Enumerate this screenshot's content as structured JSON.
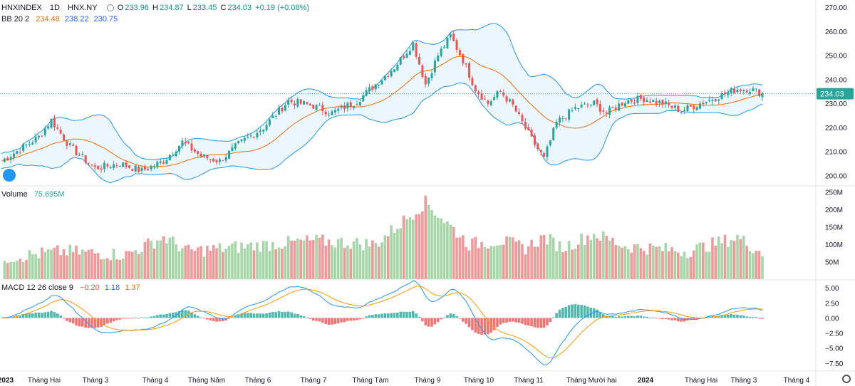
{
  "header": {
    "symbol": "HNXINDEX",
    "interval": "1D",
    "exchange": "HNX.NY",
    "open_label": "O",
    "open": "233.96",
    "high_label": "H",
    "high": "234.87",
    "low_label": "L",
    "low": "233.45",
    "close_label": "C",
    "close": "234.03",
    "change": "+0.19 (+0.08%)"
  },
  "bb_legend": {
    "label": "BB 20 2",
    "basis": "234.48",
    "upper": "238.22",
    "lower": "230.75"
  },
  "volume_legend": {
    "label": "Volume",
    "value": "75.695M"
  },
  "macd_legend": {
    "label": "MACD 12 26 close 9",
    "hist": "−0.20",
    "macd": "1.18",
    "signal": "1.37"
  },
  "price_badge": "234.03",
  "colors": {
    "up": "#26a69a",
    "down": "#ef5350",
    "basis": "#ef6c00",
    "band": "#2196f3",
    "band_fill": "#e3f2fd",
    "macd": "#2196f3",
    "signal": "#ff9800",
    "vol_up": "#a5d6a7",
    "vol_down": "#ef9a9a"
  },
  "icons": {
    "logo": "tradingview-cloud-icon",
    "eye": "eye-icon",
    "settings": "gear-icon"
  },
  "chart_data": {
    "type": "candlestick",
    "price_axis": {
      "ticks": [
        "270.00",
        "260.00",
        "250.00",
        "240.00",
        "230.00",
        "220.00",
        "210.00",
        "200.00"
      ],
      "range": [
        196,
        273
      ]
    },
    "volume_axis": {
      "ticks": [
        "250M",
        "200M",
        "150M",
        "100M",
        "50M"
      ],
      "range": [
        0,
        265
      ]
    },
    "macd_axis": {
      "ticks": [
        "5.00",
        "2.50",
        "0.00",
        "−2.50",
        "−5.00",
        "−7.50"
      ],
      "range": [
        -8.7,
        6.2
      ]
    },
    "time_axis": [
      "2023",
      "Tháng Hai",
      "Tháng 3",
      "Tháng 4",
      "Tháng Năm",
      "Tháng 6",
      "Tháng 7",
      "Tháng Tám",
      "Tháng 9",
      "Tháng 10",
      "Tháng 11",
      "Tháng Mười hai",
      "2024",
      "Tháng Hai",
      "Tháng 3",
      "Tháng 4"
    ],
    "close_series_control_points": [
      [
        0,
        206
      ],
      [
        12,
        216
      ],
      [
        16,
        223
      ],
      [
        22,
        212
      ],
      [
        30,
        203
      ],
      [
        38,
        205
      ],
      [
        45,
        202
      ],
      [
        52,
        206
      ],
      [
        58,
        214
      ],
      [
        64,
        208
      ],
      [
        70,
        206
      ],
      [
        76,
        213
      ],
      [
        84,
        220
      ],
      [
        92,
        231
      ],
      [
        100,
        229
      ],
      [
        106,
        226
      ],
      [
        114,
        231
      ],
      [
        120,
        238
      ],
      [
        126,
        245
      ],
      [
        132,
        255
      ],
      [
        136,
        238
      ],
      [
        140,
        250
      ],
      [
        144,
        258
      ],
      [
        148,
        248
      ],
      [
        152,
        236
      ],
      [
        156,
        230
      ],
      [
        160,
        235
      ],
      [
        164,
        229
      ],
      [
        170,
        215
      ],
      [
        174,
        207
      ],
      [
        178,
        222
      ],
      [
        184,
        228
      ],
      [
        190,
        230
      ],
      [
        194,
        226
      ],
      [
        200,
        231
      ],
      [
        206,
        232
      ],
      [
        212,
        230
      ],
      [
        218,
        227
      ],
      [
        224,
        230
      ],
      [
        230,
        233
      ],
      [
        236,
        236
      ],
      [
        240,
        236
      ],
      [
        244,
        234
      ]
    ],
    "volume_series_control_points": [
      [
        0,
        60
      ],
      [
        20,
        80
      ],
      [
        40,
        70
      ],
      [
        52,
        120
      ],
      [
        60,
        80
      ],
      [
        80,
        95
      ],
      [
        100,
        110
      ],
      [
        120,
        100
      ],
      [
        136,
        220
      ],
      [
        150,
        100
      ],
      [
        160,
        110
      ],
      [
        168,
        90
      ],
      [
        174,
        120
      ],
      [
        180,
        90
      ],
      [
        190,
        130
      ],
      [
        200,
        95
      ],
      [
        220,
        80
      ],
      [
        236,
        120
      ],
      [
        244,
        75
      ]
    ],
    "last_close": 234.03
  }
}
